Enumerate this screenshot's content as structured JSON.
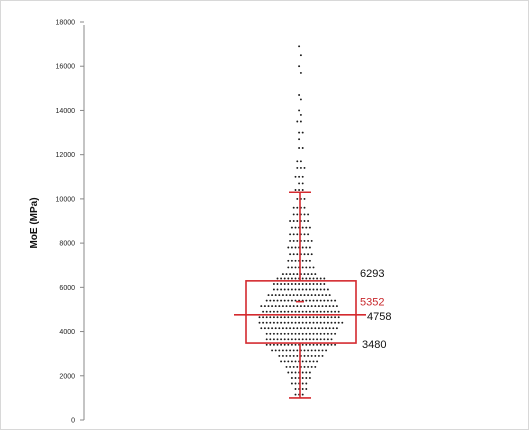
{
  "chart_data": {
    "type": "scatter",
    "subtype": "box-and-beeswarm",
    "title": "",
    "xlabel": "",
    "ylabel": "MoE (MPa)",
    "ylim": [
      0,
      18000
    ],
    "yticks": [
      0,
      2000,
      4000,
      6000,
      8000,
      10000,
      12000,
      14000,
      16000,
      18000
    ],
    "grid": false,
    "legend": "none",
    "colors": {
      "points": "#1a1a1a",
      "box": "#d42a2f",
      "axis": "#888888"
    },
    "summary": {
      "whisker_min": 1000,
      "q1": 3480,
      "median": 4758,
      "mean": 5352,
      "q3": 6293,
      "whisker_max": 10300
    },
    "annotations": [
      {
        "id": "q3",
        "text": "6293",
        "value": 6293
      },
      {
        "id": "mean",
        "text": "5352",
        "value": 5352
      },
      {
        "id": "median",
        "text": "4758",
        "value": 4758
      },
      {
        "id": "q1",
        "text": "3480",
        "value": 3480
      }
    ],
    "point_bins": [
      {
        "y": 16900,
        "n": 1
      },
      {
        "y": 16500,
        "n": 1
      },
      {
        "y": 16000,
        "n": 1
      },
      {
        "y": 15700,
        "n": 1
      },
      {
        "y": 14700,
        "n": 1
      },
      {
        "y": 14500,
        "n": 1
      },
      {
        "y": 14000,
        "n": 1
      },
      {
        "y": 13800,
        "n": 1
      },
      {
        "y": 13500,
        "n": 2
      },
      {
        "y": 13000,
        "n": 2
      },
      {
        "y": 12700,
        "n": 1
      },
      {
        "y": 12300,
        "n": 2
      },
      {
        "y": 11700,
        "n": 2
      },
      {
        "y": 11400,
        "n": 3
      },
      {
        "y": 11000,
        "n": 3
      },
      {
        "y": 10700,
        "n": 2
      },
      {
        "y": 10400,
        "n": 3
      },
      {
        "y": 10000,
        "n": 3
      },
      {
        "y": 9600,
        "n": 4
      },
      {
        "y": 9300,
        "n": 5
      },
      {
        "y": 9000,
        "n": 6
      },
      {
        "y": 8700,
        "n": 6
      },
      {
        "y": 8400,
        "n": 6
      },
      {
        "y": 8100,
        "n": 7
      },
      {
        "y": 7800,
        "n": 7
      },
      {
        "y": 7500,
        "n": 7
      },
      {
        "y": 7200,
        "n": 7
      },
      {
        "y": 6900,
        "n": 8
      },
      {
        "y": 6600,
        "n": 10
      },
      {
        "y": 6400,
        "n": 14
      },
      {
        "y": 6150,
        "n": 15
      },
      {
        "y": 5900,
        "n": 16
      },
      {
        "y": 5650,
        "n": 18
      },
      {
        "y": 5400,
        "n": 20
      },
      {
        "y": 5150,
        "n": 22
      },
      {
        "y": 4900,
        "n": 22
      },
      {
        "y": 4650,
        "n": 23
      },
      {
        "y": 4400,
        "n": 24
      },
      {
        "y": 4150,
        "n": 22
      },
      {
        "y": 3900,
        "n": 20
      },
      {
        "y": 3650,
        "n": 19
      },
      {
        "y": 3400,
        "n": 20
      },
      {
        "y": 3150,
        "n": 16
      },
      {
        "y": 2900,
        "n": 13
      },
      {
        "y": 2650,
        "n": 11
      },
      {
        "y": 2400,
        "n": 9
      },
      {
        "y": 2150,
        "n": 7
      },
      {
        "y": 1900,
        "n": 6
      },
      {
        "y": 1650,
        "n": 5
      },
      {
        "y": 1400,
        "n": 4
      },
      {
        "y": 1150,
        "n": 3
      }
    ]
  }
}
